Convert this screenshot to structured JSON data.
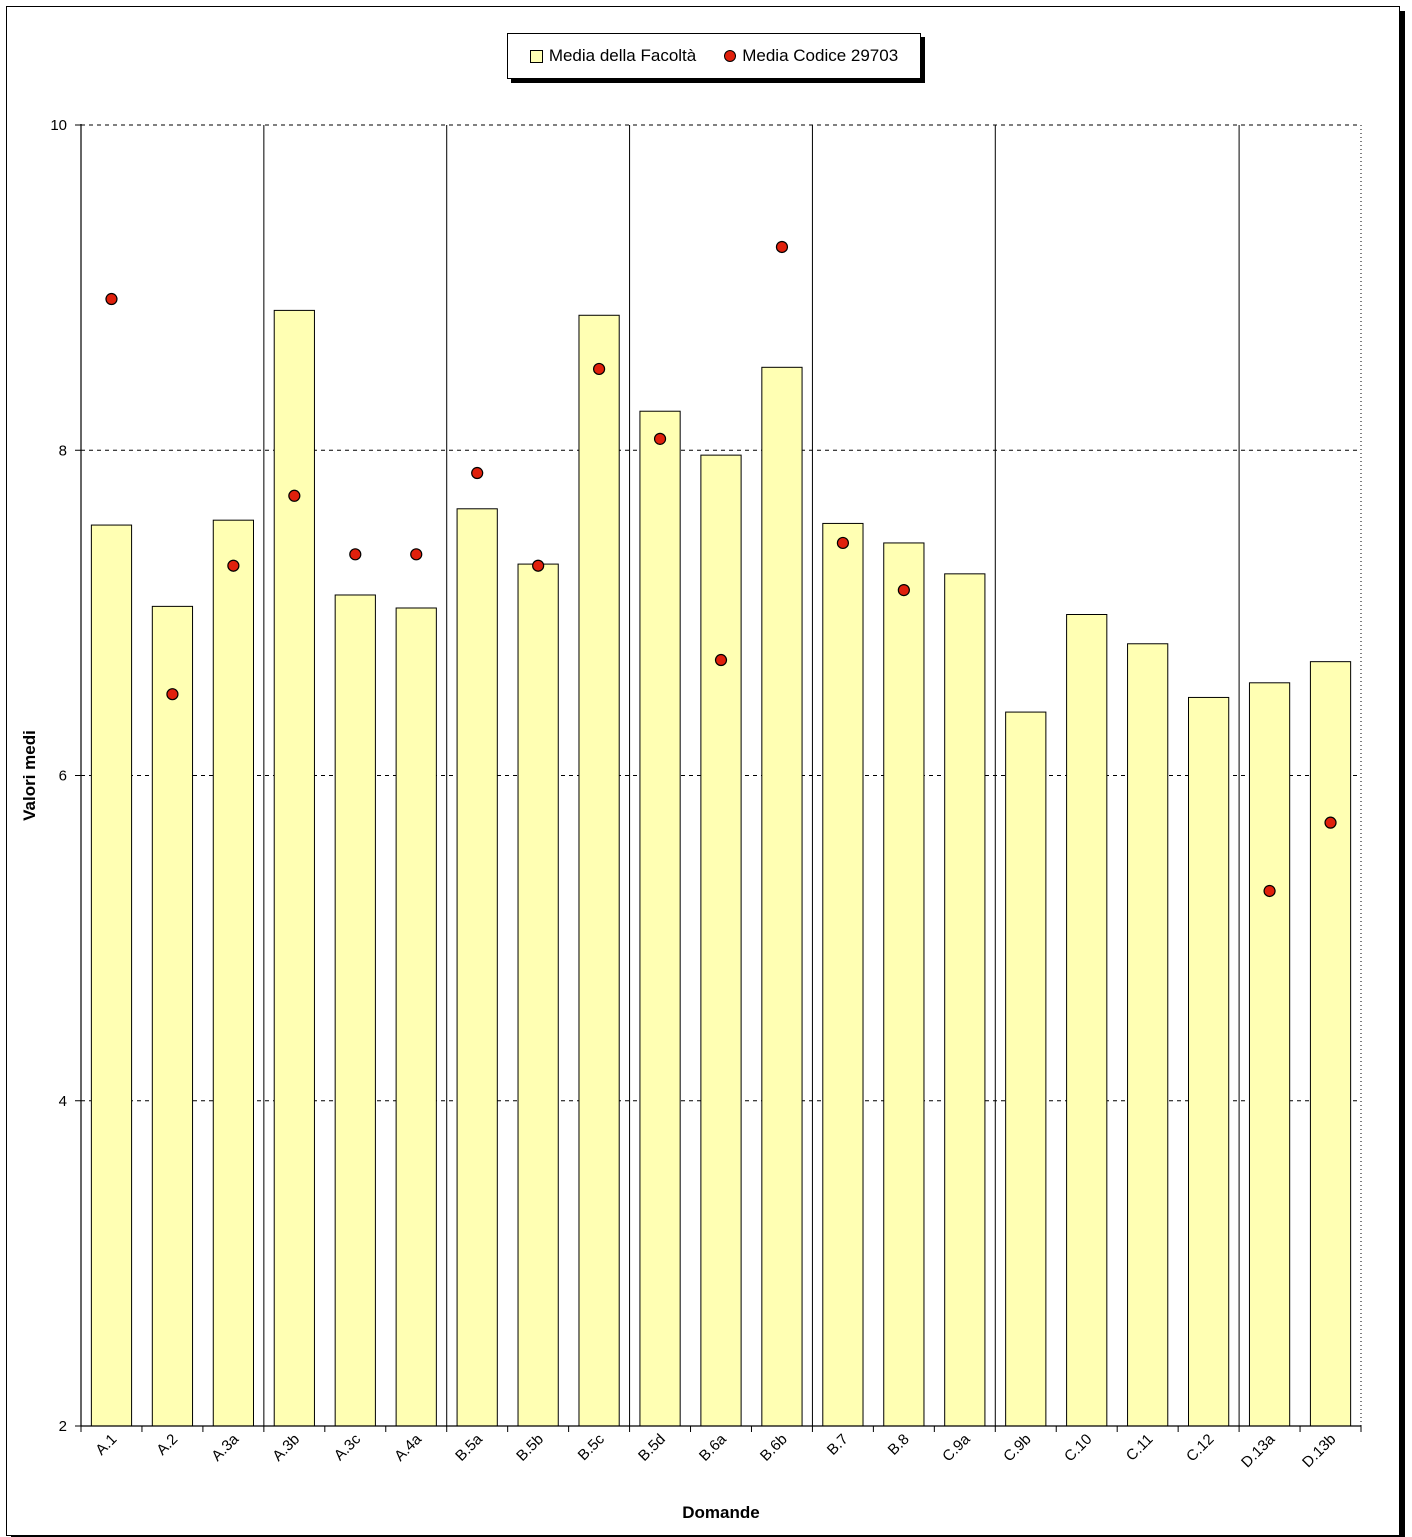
{
  "chart_data": {
    "type": "bar",
    "xlabel": "Domande",
    "ylabel": "Valori medi",
    "ylim": [
      2,
      10
    ],
    "yticks": [
      2,
      4,
      6,
      8,
      10
    ],
    "grid": "horizontal dashed",
    "legend_position": "top-center",
    "categories": [
      "A.1",
      "A.2",
      "A.3a",
      "A.3b",
      "A.3c",
      "A.4a",
      "B.5a",
      "B.5b",
      "B.5c",
      "B.5d",
      "B.6a",
      "B.6b",
      "B.7",
      "B.8",
      "C.9a",
      "C.9b",
      "C.10",
      "C.11",
      "C.12",
      "D.13a",
      "D.13b"
    ],
    "group_separators_after": [
      "A.3a",
      "A.4a",
      "B.5c",
      "B.6b",
      "C.9a",
      "C.12"
    ],
    "series": [
      {
        "name": "Media della Facoltà",
        "kind": "bar",
        "color": "#ffffb3",
        "values": [
          7.54,
          7.04,
          7.57,
          8.86,
          7.11,
          7.03,
          7.64,
          7.3,
          8.83,
          8.24,
          7.97,
          8.51,
          7.55,
          7.43,
          7.24,
          6.39,
          6.99,
          6.81,
          6.48,
          6.57,
          6.7
        ]
      },
      {
        "name": "Media Codice 29703",
        "kind": "marker",
        "color": "#e0200c",
        "values": [
          8.93,
          6.5,
          7.29,
          7.72,
          7.36,
          7.36,
          7.86,
          7.29,
          8.5,
          8.07,
          6.71,
          9.25,
          7.43,
          7.14,
          null,
          null,
          null,
          null,
          null,
          5.29,
          5.71
        ]
      }
    ]
  }
}
